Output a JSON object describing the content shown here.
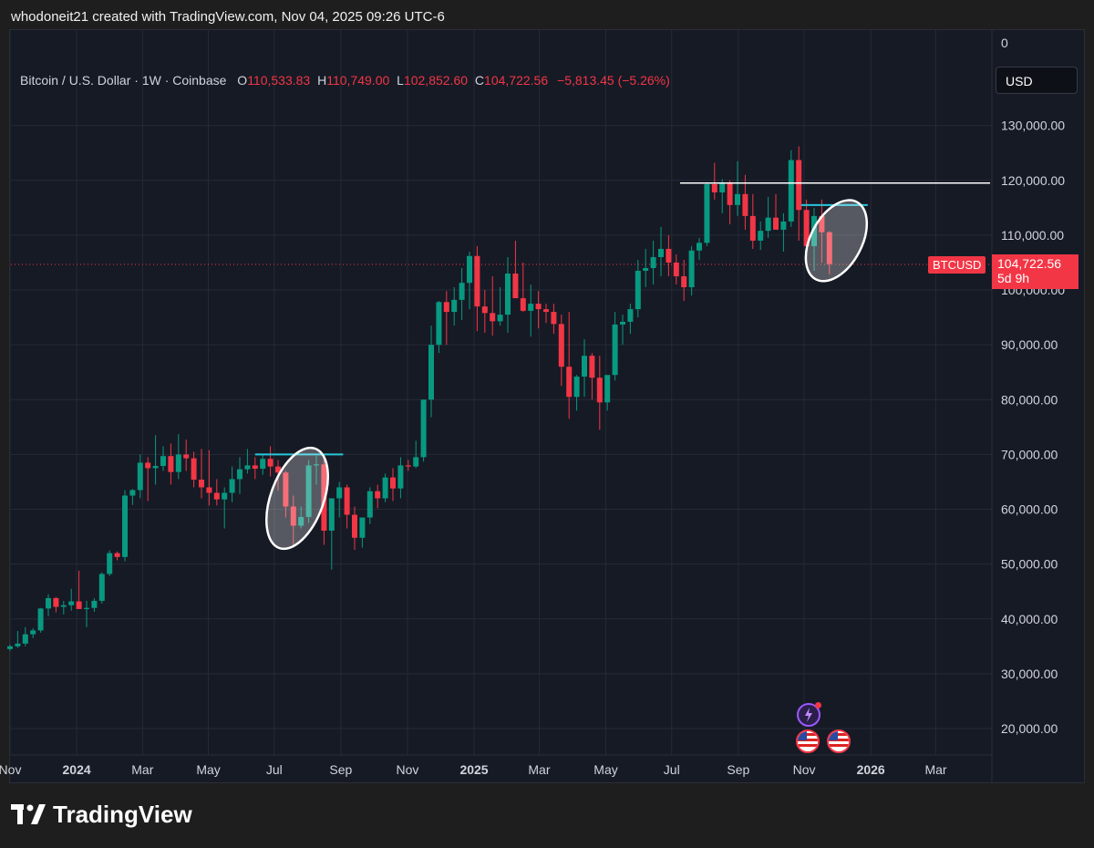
{
  "header": {
    "attribution": "whodoneit21 created with TradingView.com, Nov 04, 2025 09:26 UTC-6"
  },
  "legend": {
    "symbol": "Bitcoin / U.S. Dollar · 1W · Coinbase",
    "open_label": "O",
    "open": "110,533.83",
    "high_label": "H",
    "high": "110,749.00",
    "low_label": "L",
    "low": "102,852.60",
    "close_label": "C",
    "close": "104,722.56",
    "change": "−5,813.45 (−5.26%)"
  },
  "currency_button": "USD",
  "price_tag": {
    "symbol": "BTCUSD",
    "price": "104,722.56",
    "countdown": "5d 9h"
  },
  "brand": {
    "name": "TradingView"
  },
  "colors": {
    "up": "#089981",
    "down": "#f23645",
    "background": "#161a25",
    "annotation": "#26c6da"
  },
  "chart_data": {
    "type": "candlestick",
    "title": "",
    "xlabel": "",
    "ylabel": "",
    "ylim": [
      15000,
      137000
    ],
    "grid": true,
    "y_ticks": [
      "0",
      "130,000.00",
      "120,000.00",
      "110,000.00",
      "100,000.00",
      "90,000.00",
      "80,000.00",
      "70,000.00",
      "60,000.00",
      "50,000.00",
      "40,000.00",
      "30,000.00",
      "20,000.00"
    ],
    "x_ticks": [
      {
        "label": "Nov",
        "week": 0,
        "bold": false
      },
      {
        "label": "2024",
        "week": 8.7,
        "bold": true
      },
      {
        "label": "Mar",
        "week": 17.3,
        "bold": false
      },
      {
        "label": "May",
        "week": 25.9,
        "bold": false
      },
      {
        "label": "Jul",
        "week": 34.5,
        "bold": false
      },
      {
        "label": "Sep",
        "week": 43.2,
        "bold": false
      },
      {
        "label": "Nov",
        "week": 51.9,
        "bold": false
      },
      {
        "label": "2025",
        "week": 60.6,
        "bold": true
      },
      {
        "label": "Mar",
        "week": 69.1,
        "bold": false
      },
      {
        "label": "May",
        "week": 77.8,
        "bold": false
      },
      {
        "label": "Jul",
        "week": 86.4,
        "bold": false
      },
      {
        "label": "Sep",
        "week": 95.1,
        "bold": false
      },
      {
        "label": "Nov",
        "week": 103.7,
        "bold": false
      },
      {
        "label": "2026",
        "week": 112.4,
        "bold": true
      },
      {
        "label": "Mar",
        "week": 120.9,
        "bold": false
      }
    ],
    "candles_ohlc": [
      [
        34500,
        35300,
        34200,
        35000
      ],
      [
        35000,
        37800,
        34700,
        35500
      ],
      [
        35500,
        38500,
        35000,
        37200
      ],
      [
        37200,
        38300,
        36500,
        37900
      ],
      [
        37900,
        42000,
        37500,
        41900
      ],
      [
        41900,
        44500,
        40500,
        43800
      ],
      [
        43800,
        44000,
        41200,
        42200
      ],
      [
        42200,
        43300,
        40800,
        42500
      ],
      [
        42500,
        45500,
        41500,
        43200
      ],
      [
        43200,
        48800,
        42200,
        41800
      ],
      [
        41800,
        43300,
        38500,
        42000
      ],
      [
        42000,
        43800,
        41300,
        43300
      ],
      [
        43300,
        48500,
        42800,
        48200
      ],
      [
        48200,
        52500,
        47800,
        52000
      ],
      [
        52000,
        52300,
        50700,
        51300
      ],
      [
        51300,
        63500,
        50500,
        62500
      ],
      [
        62500,
        63700,
        60800,
        63500
      ],
      [
        63500,
        70000,
        62000,
        68500
      ],
      [
        68500,
        69500,
        61500,
        67500
      ],
      [
        67500,
        73500,
        64500,
        67900
      ],
      [
        67900,
        71500,
        67000,
        69700
      ],
      [
        69700,
        72000,
        64500,
        66800
      ],
      [
        66800,
        73700,
        65500,
        70000
      ],
      [
        70000,
        72700,
        67000,
        69300
      ],
      [
        69300,
        70500,
        64000,
        65400
      ],
      [
        65400,
        71000,
        62000,
        64000
      ],
      [
        64000,
        70800,
        60700,
        63000
      ],
      [
        63000,
        65500,
        60700,
        61800
      ],
      [
        61800,
        64000,
        56500,
        63000
      ],
      [
        63000,
        67800,
        61300,
        65500
      ],
      [
        65500,
        69500,
        62800,
        67300
      ],
      [
        67300,
        71000,
        66500,
        68000
      ],
      [
        68000,
        69500,
        65500,
        67400
      ],
      [
        67400,
        70000,
        66300,
        69200
      ],
      [
        69200,
        71500,
        66000,
        67800
      ],
      [
        67800,
        69000,
        63400,
        66700
      ],
      [
        66700,
        67000,
        58500,
        60500
      ],
      [
        60500,
        62500,
        53500,
        57000
      ],
      [
        57000,
        60500,
        56500,
        58600
      ],
      [
        58600,
        69000,
        57500,
        68000
      ],
      [
        68000,
        69800,
        64500,
        68200
      ],
      [
        68200,
        70000,
        53500,
        56100
      ],
      [
        56100,
        61000,
        49000,
        62000
      ],
      [
        62000,
        65000,
        58500,
        64000
      ],
      [
        64000,
        64500,
        56500,
        59000
      ],
      [
        59000,
        60500,
        52600,
        54800
      ],
      [
        54800,
        58000,
        53000,
        58500
      ],
      [
        58500,
        64000,
        57300,
        63300
      ],
      [
        63300,
        64500,
        60200,
        62000
      ],
      [
        62000,
        66500,
        61300,
        65800
      ],
      [
        65800,
        67500,
        61500,
        63800
      ],
      [
        63800,
        69500,
        62000,
        68000
      ],
      [
        68000,
        69000,
        67000,
        67800
      ],
      [
        67800,
        72500,
        67500,
        69500
      ],
      [
        69500,
        77500,
        68700,
        80000
      ],
      [
        80000,
        93500,
        76800,
        90000
      ],
      [
        90000,
        98000,
        88500,
        97800
      ],
      [
        97800,
        99800,
        90000,
        96000
      ],
      [
        96000,
        100500,
        93500,
        98200
      ],
      [
        98200,
        104000,
        94500,
        101300
      ],
      [
        101300,
        107000,
        96500,
        106200
      ],
      [
        106200,
        108000,
        92500,
        97000
      ],
      [
        97000,
        100000,
        92200,
        95800
      ],
      [
        95800,
        102500,
        91700,
        94300
      ],
      [
        94300,
        100500,
        93500,
        95500
      ],
      [
        95500,
        106000,
        92200,
        103000
      ],
      [
        103000,
        109000,
        99000,
        98500
      ],
      [
        98500,
        105000,
        96000,
        96200
      ],
      [
        96200,
        101000,
        91500,
        97500
      ],
      [
        97500,
        99800,
        93000,
        96500
      ],
      [
        96500,
        97500,
        94000,
        96000
      ],
      [
        96000,
        97500,
        92000,
        93800
      ],
      [
        93800,
        95500,
        82500,
        86000
      ],
      [
        86000,
        96000,
        76500,
        80500
      ],
      [
        80500,
        84500,
        78000,
        84200
      ],
      [
        84200,
        91000,
        80500,
        88000
      ],
      [
        88000,
        88500,
        80000,
        84000
      ],
      [
        84000,
        88000,
        74500,
        79500
      ],
      [
        79500,
        84000,
        78000,
        84500
      ],
      [
        84500,
        96000,
        83500,
        93700
      ],
      [
        93700,
        95500,
        90000,
        94200
      ],
      [
        94200,
        97500,
        92000,
        96500
      ],
      [
        96500,
        105500,
        95000,
        103500
      ],
      [
        103500,
        107500,
        100500,
        104000
      ],
      [
        104000,
        109000,
        101000,
        106000
      ],
      [
        106000,
        111500,
        102500,
        107500
      ],
      [
        107500,
        110000,
        102500,
        105000
      ],
      [
        105000,
        106500,
        101000,
        102500
      ],
      [
        102500,
        105500,
        98000,
        100500
      ],
      [
        100500,
        108000,
        99000,
        107200
      ],
      [
        107200,
        109500,
        105500,
        108600
      ],
      [
        108600,
        119500,
        108000,
        119300
      ],
      [
        119300,
        123200,
        116500,
        117800
      ],
      [
        117800,
        120200,
        114000,
        119500
      ],
      [
        119500,
        120000,
        112000,
        115500
      ],
      [
        115500,
        123500,
        113500,
        117500
      ],
      [
        117500,
        121000,
        111000,
        113500
      ],
      [
        113500,
        117500,
        107500,
        109000
      ],
      [
        109000,
        112500,
        107300,
        110800
      ],
      [
        110800,
        117000,
        109500,
        113200
      ],
      [
        113200,
        117500,
        111000,
        111000
      ],
      [
        111000,
        114000,
        107000,
        112500
      ],
      [
        112500,
        125500,
        111500,
        123700
      ],
      [
        123700,
        126200,
        109000,
        114600
      ],
      [
        114600,
        116500,
        104000,
        108000
      ],
      [
        108000,
        115000,
        103500,
        113500
      ],
      [
        113500,
        116500,
        105000,
        110533
      ],
      [
        110533,
        110749,
        102852,
        104722
      ]
    ]
  },
  "annotations": {
    "resistance_price": 119500,
    "ellipses": "two highlight ellipses"
  }
}
